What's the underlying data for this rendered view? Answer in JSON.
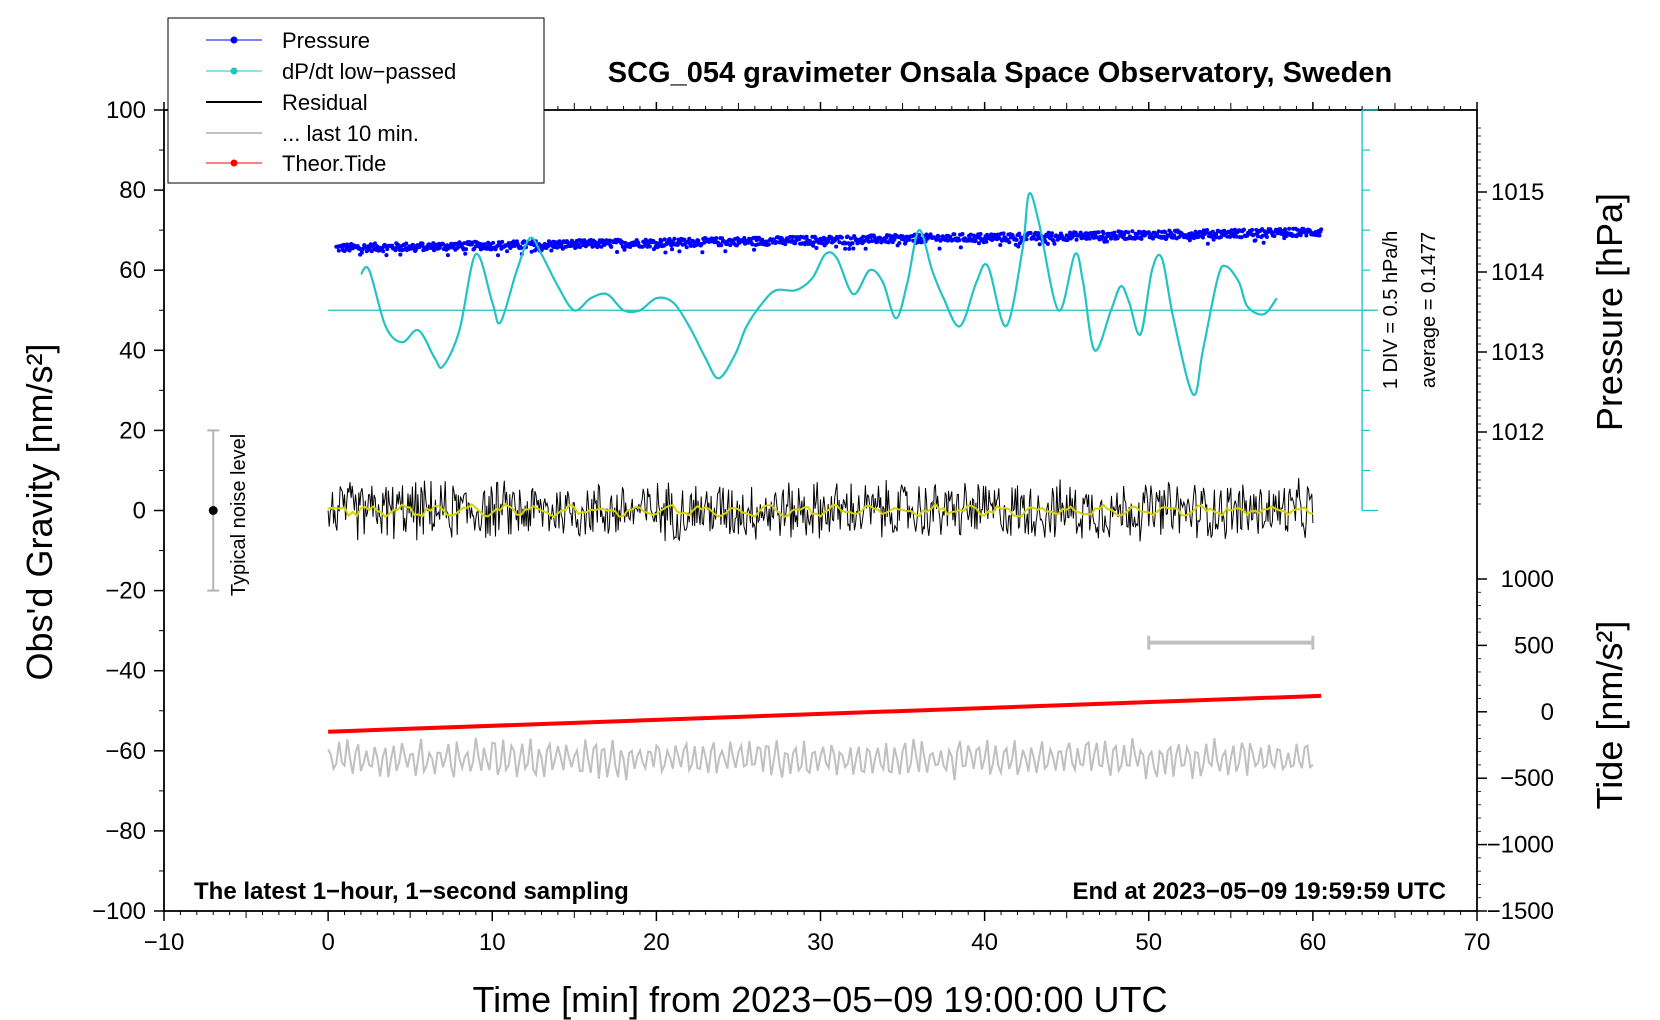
{
  "chart_data": {
    "type": "line",
    "title": "SCG_054 gravimeter Onsala Space Observatory, Sweden",
    "xlabel": "Time [min] from 2023−05−09 19:00:00 UTC",
    "ylabel_left": "Obs'd Gravity [nm/s²]",
    "ylabel_right_top": "Pressure [hPa]",
    "ylabel_right_bottom": "Tide [nm/s²]",
    "xlim": [
      -10,
      70
    ],
    "ylim_left": [
      -100,
      100
    ],
    "x_ticks": [
      "−10",
      "0",
      "10",
      "20",
      "30",
      "40",
      "50",
      "60",
      "70"
    ],
    "y_ticks_left": [
      "100",
      "80",
      "60",
      "40",
      "20",
      "0",
      "−20",
      "−40",
      "−60",
      "−80",
      "−100"
    ],
    "pressure_ticks": [
      "1015",
      "1014",
      "1013",
      "1012"
    ],
    "tide_ticks": [
      "1000",
      "500",
      "0",
      "−500",
      "−1000",
      "−1500"
    ],
    "bottom_left_note": "The latest 1−hour, 1−second sampling",
    "bottom_right_note": "End at 2023−05−09 19:59:59 UTC",
    "dpdt_scale_note": "1 DIV = 0.5 hPa/h",
    "dpdt_average_note": "average = 0.1477",
    "noise_label": "Typical noise level",
    "noise_bar": {
      "x": -7,
      "center": 0,
      "low": -20,
      "high": 20
    },
    "legend": [
      {
        "label": "Pressure",
        "color": "#0000ff",
        "marker": true
      },
      {
        "label": "dP/dt low−passed",
        "color": "#22c3c3",
        "marker": true
      },
      {
        "label": "Residual",
        "color": "#000000",
        "marker": false
      },
      {
        "label": "... last 10 min.",
        "color": "#c0c0c0",
        "marker": false
      },
      {
        "label": "Theor.Tide",
        "color": "#ff0000",
        "marker": true
      }
    ],
    "series": [
      {
        "name": "Pressure",
        "units": "hPa",
        "color": "#0000ff",
        "x": [
          0.5,
          60.5
        ],
        "approx_start": 1014.3,
        "approx_end": 1014.5,
        "scatter_spread": 0.05
      },
      {
        "name": "dP/dt low-passed",
        "units": "nm/s2 (display)",
        "color": "#22c3c3",
        "x_start": 2,
        "x_end": 58,
        "values": [
          [
            2,
            59
          ],
          [
            2.5,
            60
          ],
          [
            3.5,
            46
          ],
          [
            4.5,
            42
          ],
          [
            5.5,
            45
          ],
          [
            6.5,
            38
          ],
          [
            7,
            36
          ],
          [
            8,
            45
          ],
          [
            9,
            64
          ],
          [
            10,
            52
          ],
          [
            10.5,
            47
          ],
          [
            11.5,
            60
          ],
          [
            12.3,
            68
          ],
          [
            13,
            64
          ],
          [
            14,
            56
          ],
          [
            15,
            50
          ],
          [
            16,
            53
          ],
          [
            17,
            54
          ],
          [
            18,
            50
          ],
          [
            19,
            50
          ],
          [
            20,
            53
          ],
          [
            21,
            52
          ],
          [
            22,
            46
          ],
          [
            23,
            38
          ],
          [
            23.8,
            33
          ],
          [
            24.8,
            39
          ],
          [
            25.5,
            46
          ],
          [
            26.5,
            52
          ],
          [
            27.3,
            55
          ],
          [
            28.5,
            55
          ],
          [
            29.5,
            58
          ],
          [
            30.3,
            64
          ],
          [
            31,
            63
          ],
          [
            32,
            54
          ],
          [
            33,
            60
          ],
          [
            33.8,
            57
          ],
          [
            34.6,
            48
          ],
          [
            35.3,
            57
          ],
          [
            36,
            70
          ],
          [
            36.8,
            60
          ],
          [
            37.5,
            53
          ],
          [
            38.5,
            46
          ],
          [
            39.5,
            57
          ],
          [
            40.2,
            61
          ],
          [
            41.3,
            46
          ],
          [
            42.3,
            65
          ],
          [
            42.7,
            79
          ],
          [
            43.3,
            72
          ],
          [
            44.5,
            50
          ],
          [
            45.5,
            64
          ],
          [
            46,
            57
          ],
          [
            46.7,
            40
          ],
          [
            47.7,
            50
          ],
          [
            48.3,
            56
          ],
          [
            48.8,
            52
          ],
          [
            49.5,
            44
          ],
          [
            50.2,
            60
          ],
          [
            50.8,
            63
          ],
          [
            51.5,
            48
          ],
          [
            52.7,
            29
          ],
          [
            53.3,
            40
          ],
          [
            54.2,
            58
          ],
          [
            54.7,
            61
          ],
          [
            55.5,
            57
          ],
          [
            56,
            51
          ],
          [
            57,
            49
          ],
          [
            57.8,
            53
          ]
        ],
        "reference_level": 50
      },
      {
        "name": "Residual",
        "units": "nm/s2",
        "color": "#000000",
        "x": [
          0,
          60
        ],
        "center": 0,
        "amplitude": 7
      },
      {
        "name": "Residual smoothed",
        "units": "nm/s2",
        "color": "#d4d400",
        "x": [
          0,
          60
        ],
        "center": 0,
        "amplitude": 1.5
      },
      {
        "name": "... last 10 min.",
        "units": "nm/s2 (display offset)",
        "color": "#c0c0c0",
        "x": [
          50,
          60
        ],
        "bar_y": -33
      },
      {
        "name": "Residual shifted",
        "units": "nm/s2",
        "color": "#c0c0c0",
        "x": [
          0,
          60
        ],
        "center": -62,
        "amplitude": 5
      },
      {
        "name": "Theor.Tide",
        "units": "nm/s2",
        "color": "#ff0000",
        "x": [
          0,
          60.5
        ],
        "values": [
          -150,
          120
        ]
      }
    ]
  }
}
